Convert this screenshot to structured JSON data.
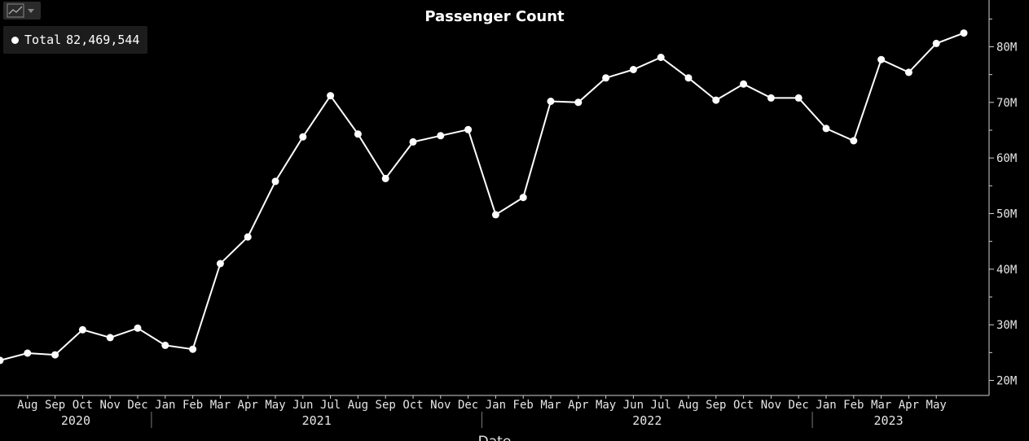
{
  "toolbar": {
    "chart_type_icon": "line-chart-icon",
    "dropdown_icon": "caret-down-icon"
  },
  "legend": {
    "name": "Total",
    "value": "82,469,544"
  },
  "chart_data": {
    "type": "line",
    "title": "Passenger Count",
    "xlabel": "Date",
    "ylabel": "",
    "y_tick_labels": [
      "20M",
      "30M",
      "40M",
      "50M",
      "60M",
      "70M",
      "80M"
    ],
    "y_ticks": [
      20000000,
      30000000,
      40000000,
      50000000,
      60000000,
      70000000,
      80000000
    ],
    "ylim": [
      18000000,
      86000000
    ],
    "month_labels": [
      "Aug",
      "Sep",
      "Oct",
      "Nov",
      "Dec",
      "Jan",
      "Feb",
      "Mar",
      "Apr",
      "May",
      "Jun",
      "Jul",
      "Aug",
      "Sep",
      "Oct",
      "Nov",
      "Dec",
      "Jan",
      "Feb",
      "Mar",
      "Apr",
      "May",
      "Jun",
      "Jul",
      "Aug",
      "Sep",
      "Oct",
      "Nov",
      "Dec",
      "Jan",
      "Feb",
      "Mar",
      "Apr",
      "May"
    ],
    "years": [
      {
        "label": "2020",
        "start": "2020-07",
        "end": "2020-12"
      },
      {
        "label": "2021",
        "start": "2021-01",
        "end": "2021-12"
      },
      {
        "label": "2022",
        "start": "2022-01",
        "end": "2022-12"
      },
      {
        "label": "2023",
        "start": "2023-01",
        "end": "2023-06"
      }
    ],
    "grid": false,
    "color": "#ffffff",
    "series": [
      {
        "x": [
          "2020-07",
          "2020-08",
          "2020-09",
          "2020-10",
          "2020-11",
          "2020-12",
          "2021-01",
          "2021-02",
          "2021-03",
          "2021-04",
          "2021-05",
          "2021-06",
          "2021-07",
          "2021-08",
          "2021-09",
          "2021-10",
          "2021-11",
          "2021-12",
          "2022-01",
          "2022-02",
          "2022-03",
          "2022-04",
          "2022-05",
          "2022-06",
          "2022-07",
          "2022-08",
          "2022-09",
          "2022-10",
          "2022-11",
          "2022-12",
          "2023-01",
          "2023-02",
          "2023-03",
          "2023-04",
          "2023-05",
          "2023-06"
        ],
        "values": [
          23600000,
          24900000,
          24600000,
          29100000,
          27700000,
          29400000,
          26300000,
          25600000,
          41000000,
          45800000,
          55800000,
          63800000,
          71200000,
          64300000,
          56300000,
          62900000,
          64000000,
          65100000,
          49800000,
          52900000,
          70200000,
          70000000,
          74400000,
          75900000,
          78100000,
          74400000,
          70400000,
          73300000,
          70800000,
          70800000,
          65300000,
          63100000,
          77700000,
          75400000,
          80600000,
          82469544
        ]
      }
    ]
  }
}
